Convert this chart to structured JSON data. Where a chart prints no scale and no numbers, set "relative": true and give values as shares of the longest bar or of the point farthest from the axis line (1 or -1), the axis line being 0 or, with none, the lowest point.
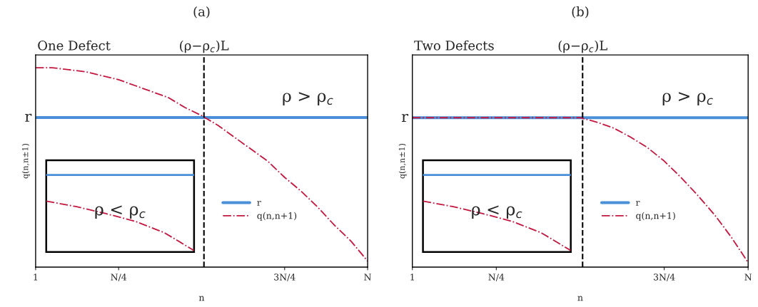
{
  "chart_data": [
    {
      "type": "line",
      "title": "(a)",
      "subtitle": "One Defect",
      "xlabel": "n",
      "ylabel": "q(n,n±1)",
      "relative": true,
      "legend": "right",
      "grid": false,
      "categories": [
        "1",
        null,
        null,
        null,
        null,
        "N/4",
        null,
        null,
        null,
        null,
        null,
        null,
        null,
        null,
        null,
        "3N/4",
        null,
        null,
        null,
        null,
        "N"
      ],
      "series": [
        {
          "name": "r",
          "color": "#4a90d9",
          "line_style": "solid",
          "values": [
            0.75,
            0.75,
            0.75,
            0.75,
            0.75,
            0.75,
            0.75,
            0.75,
            0.75,
            0.75,
            0.75,
            0.75,
            0.75,
            0.75,
            0.75,
            0.75,
            0.75,
            0.75,
            0.75,
            0.75,
            0.75
          ]
        },
        {
          "name": "q(n,n+1)",
          "color": "#c4173f",
          "line_style": "dashdot",
          "values": [
            1,
            1,
            0.99,
            0.98,
            0.96,
            0.94,
            0.91,
            0.88,
            0.85,
            0.8,
            0.76,
            0.71,
            0.65,
            0.59,
            0.53,
            0.45,
            0.38,
            0.3,
            0.21,
            0.13,
            0.03
          ]
        }
      ],
      "annotations": [
        "ρ > ρ$_{c}$",
        "r",
        "(ρ−ρ$_{c}$)L"
      ]
    },
    {
      "type": "line",
      "relative": true,
      "categories": [
        null,
        null,
        null,
        null,
        null,
        null
      ],
      "series": [
        {
          "color": "#4a90d9",
          "line_style": "solid",
          "values": [
            1,
            1,
            1,
            1,
            1,
            1
          ]
        },
        {
          "color": "#c4173f",
          "line_style": "dashdot",
          "values": [
            0.66,
            0.59,
            0.5,
            0.4,
            0.25,
            0.02
          ]
        }
      ],
      "annotations": [
        "ρ < ρ$_{c}$"
      ]
    },
    {
      "type": "line",
      "title": "(b)",
      "subtitle": "Two Defects",
      "xlabel": "n",
      "ylabel": "q(n,n±1)",
      "relative": true,
      "legend": "right",
      "grid": false,
      "categories": [
        "1",
        null,
        null,
        null,
        null,
        "N/4",
        null,
        null,
        null,
        null,
        null,
        null,
        null,
        null,
        null,
        "3N/4",
        null,
        null,
        null,
        null,
        "N"
      ],
      "series": [
        {
          "name": "r",
          "color": "#4a90d9",
          "line_style": "solid",
          "values": [
            1,
            1,
            1,
            1,
            1,
            1,
            1,
            1,
            1,
            1,
            1,
            1,
            1,
            1,
            1,
            1,
            1,
            1,
            1,
            1,
            1
          ]
        },
        {
          "name": "q(n,n+1)",
          "color": "#c4173f",
          "line_style": "dashdot",
          "values": [
            1,
            1,
            1,
            1,
            1,
            1,
            1,
            1,
            1,
            1,
            1,
            0.97,
            0.93,
            0.87,
            0.8,
            0.71,
            0.6,
            0.48,
            0.35,
            0.2,
            0.03
          ]
        }
      ],
      "annotations": [
        "ρ > ρ$_{c}$",
        "r",
        "(ρ−ρ$_{c}$)L"
      ]
    },
    {
      "type": "line",
      "relative": true,
      "categories": [
        null,
        null,
        null,
        null,
        null,
        null
      ],
      "series": [
        {
          "color": "#4a90d9",
          "line_style": "solid",
          "values": [
            1,
            1,
            1,
            1,
            1,
            1
          ]
        },
        {
          "color": "#c4173f",
          "line_style": "dashdot",
          "values": [
            0.66,
            0.59,
            0.5,
            0.4,
            0.25,
            0.02
          ]
        }
      ],
      "annotations": [
        "ρ < ρ$_{c}$"
      ]
    }
  ]
}
